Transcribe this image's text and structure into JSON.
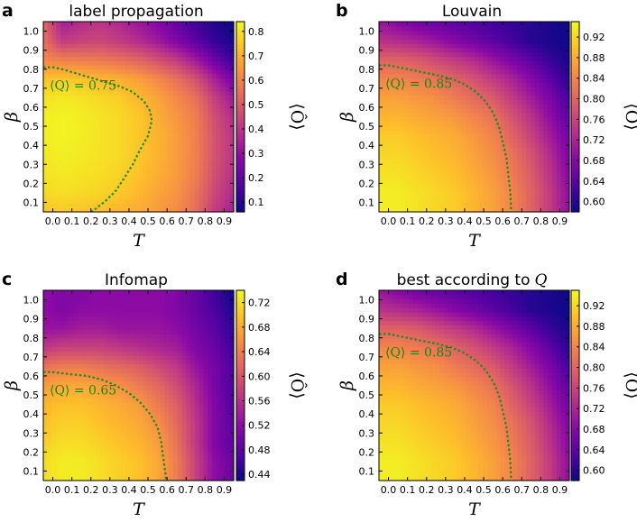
{
  "colors": {
    "contour": "#1e8c1e",
    "contour_text": "#118a11",
    "axis": "#000000"
  },
  "chart_data": [
    {
      "id": "a",
      "type": "heatmap",
      "letter": "a",
      "title": "label propagation",
      "xlabel": "T",
      "ylabel": "β",
      "xlim": [
        -0.05,
        0.95
      ],
      "ylim": [
        0.05,
        1.05
      ],
      "x_ticks": [
        "0.0",
        "0.1",
        "0.2",
        "0.3",
        "0.4",
        "0.5",
        "0.6",
        "0.7",
        "0.8",
        "0.9"
      ],
      "y_ticks": [
        "0.1",
        "0.2",
        "0.3",
        "0.4",
        "0.5",
        "0.6",
        "0.7",
        "0.8",
        "0.9",
        "1.0"
      ],
      "colorbar_label": "⟨Ô⟩",
      "colorbar_ticks": [
        "0.1",
        "0.2",
        "0.3",
        "0.4",
        "0.5",
        "0.6",
        "0.7",
        "0.8"
      ],
      "colorbar_range": [
        0.06,
        0.84
      ],
      "contour_label": "⟨Q⟩ = 0.75",
      "contour_value": 0.75,
      "contour_points": [
        [
          -0.05,
          0.81
        ],
        [
          0.0,
          0.81
        ],
        [
          0.05,
          0.8
        ],
        [
          0.15,
          0.77
        ],
        [
          0.25,
          0.74
        ],
        [
          0.35,
          0.71
        ],
        [
          0.42,
          0.68
        ],
        [
          0.48,
          0.63
        ],
        [
          0.51,
          0.58
        ],
        [
          0.52,
          0.53
        ],
        [
          0.5,
          0.45
        ],
        [
          0.46,
          0.38
        ],
        [
          0.42,
          0.3
        ],
        [
          0.37,
          0.22
        ],
        [
          0.33,
          0.16
        ],
        [
          0.28,
          0.11
        ],
        [
          0.23,
          0.07
        ],
        [
          0.2,
          0.05
        ]
      ],
      "value_grid": {
        "x": [
          -0.05,
          0.05,
          0.15,
          0.25,
          0.35,
          0.45,
          0.55,
          0.65,
          0.75,
          0.85,
          0.95
        ],
        "y": [
          0.05,
          0.15,
          0.25,
          0.35,
          0.45,
          0.55,
          0.65,
          0.75,
          0.85,
          0.95,
          1.05
        ],
        "z": [
          [
            0.74,
            0.75,
            0.74,
            0.73,
            0.71,
            0.69,
            0.66,
            0.62,
            0.55,
            0.42,
            0.34
          ],
          [
            0.78,
            0.79,
            0.78,
            0.77,
            0.75,
            0.72,
            0.68,
            0.64,
            0.57,
            0.45,
            0.37
          ],
          [
            0.8,
            0.81,
            0.8,
            0.79,
            0.77,
            0.74,
            0.7,
            0.66,
            0.59,
            0.47,
            0.39
          ],
          [
            0.81,
            0.82,
            0.81,
            0.8,
            0.78,
            0.75,
            0.71,
            0.66,
            0.6,
            0.48,
            0.4
          ],
          [
            0.82,
            0.83,
            0.82,
            0.8,
            0.78,
            0.75,
            0.71,
            0.66,
            0.6,
            0.48,
            0.4
          ],
          [
            0.82,
            0.83,
            0.82,
            0.8,
            0.78,
            0.75,
            0.7,
            0.65,
            0.59,
            0.47,
            0.38
          ],
          [
            0.8,
            0.81,
            0.8,
            0.78,
            0.76,
            0.72,
            0.68,
            0.62,
            0.56,
            0.43,
            0.33
          ],
          [
            0.74,
            0.75,
            0.74,
            0.72,
            0.7,
            0.67,
            0.62,
            0.56,
            0.48,
            0.35,
            0.24
          ],
          [
            0.62,
            0.6,
            0.59,
            0.58,
            0.56,
            0.53,
            0.48,
            0.42,
            0.33,
            0.22,
            0.13
          ],
          [
            0.56,
            0.42,
            0.44,
            0.45,
            0.42,
            0.38,
            0.33,
            0.26,
            0.19,
            0.12,
            0.08
          ],
          [
            0.54,
            0.34,
            0.38,
            0.4,
            0.37,
            0.32,
            0.27,
            0.2,
            0.14,
            0.09,
            0.06
          ]
        ]
      }
    },
    {
      "id": "b",
      "type": "heatmap",
      "letter": "b",
      "title": "Louvain",
      "xlabel": "T",
      "ylabel": "β",
      "xlim": [
        -0.05,
        0.95
      ],
      "ylim": [
        0.05,
        1.05
      ],
      "x_ticks": [
        "0.0",
        "0.1",
        "0.2",
        "0.3",
        "0.4",
        "0.5",
        "0.6",
        "0.7",
        "0.8",
        "0.9"
      ],
      "y_ticks": [
        "0.1",
        "0.2",
        "0.3",
        "0.4",
        "0.5",
        "0.6",
        "0.7",
        "0.8",
        "0.9",
        "1.0"
      ],
      "colorbar_label": "⟨Ô⟩",
      "colorbar_ticks": [
        "0.60",
        "0.64",
        "0.68",
        "0.72",
        "0.76",
        "0.80",
        "0.84",
        "0.88",
        "0.92"
      ],
      "colorbar_range": [
        0.58,
        0.95
      ],
      "contour_label": "⟨Q⟩ = 0.85",
      "contour_value": 0.85,
      "contour_points": [
        [
          -0.05,
          0.82
        ],
        [
          0.0,
          0.82
        ],
        [
          0.05,
          0.81
        ],
        [
          0.15,
          0.79
        ],
        [
          0.25,
          0.77
        ],
        [
          0.33,
          0.75
        ],
        [
          0.4,
          0.72
        ],
        [
          0.46,
          0.68
        ],
        [
          0.51,
          0.63
        ],
        [
          0.55,
          0.57
        ],
        [
          0.58,
          0.5
        ],
        [
          0.6,
          0.42
        ],
        [
          0.62,
          0.33
        ],
        [
          0.63,
          0.24
        ],
        [
          0.64,
          0.15
        ],
        [
          0.645,
          0.05
        ]
      ],
      "value_grid": {
        "x": [
          -0.05,
          0.05,
          0.15,
          0.25,
          0.35,
          0.45,
          0.55,
          0.65,
          0.75,
          0.85,
          0.95
        ],
        "y": [
          0.05,
          0.15,
          0.25,
          0.35,
          0.45,
          0.55,
          0.65,
          0.75,
          0.85,
          0.95,
          1.05
        ],
        "z": [
          [
            0.94,
            0.94,
            0.93,
            0.92,
            0.91,
            0.89,
            0.87,
            0.84,
            0.8,
            0.75,
            0.69
          ],
          [
            0.94,
            0.94,
            0.93,
            0.92,
            0.91,
            0.89,
            0.87,
            0.84,
            0.8,
            0.75,
            0.69
          ],
          [
            0.93,
            0.93,
            0.92,
            0.91,
            0.9,
            0.88,
            0.86,
            0.83,
            0.79,
            0.74,
            0.68
          ],
          [
            0.92,
            0.92,
            0.91,
            0.9,
            0.89,
            0.87,
            0.85,
            0.82,
            0.78,
            0.73,
            0.67
          ],
          [
            0.91,
            0.91,
            0.9,
            0.89,
            0.88,
            0.86,
            0.84,
            0.8,
            0.76,
            0.71,
            0.66
          ],
          [
            0.89,
            0.89,
            0.88,
            0.87,
            0.86,
            0.84,
            0.82,
            0.78,
            0.74,
            0.69,
            0.64
          ],
          [
            0.87,
            0.87,
            0.86,
            0.85,
            0.83,
            0.81,
            0.79,
            0.75,
            0.71,
            0.67,
            0.62
          ],
          [
            0.84,
            0.84,
            0.83,
            0.82,
            0.8,
            0.78,
            0.75,
            0.72,
            0.68,
            0.64,
            0.6
          ],
          [
            0.8,
            0.8,
            0.79,
            0.77,
            0.75,
            0.73,
            0.7,
            0.67,
            0.64,
            0.61,
            0.59
          ],
          [
            0.74,
            0.73,
            0.72,
            0.7,
            0.68,
            0.66,
            0.64,
            0.62,
            0.6,
            0.59,
            0.58
          ],
          [
            0.7,
            0.68,
            0.66,
            0.65,
            0.64,
            0.63,
            0.62,
            0.61,
            0.6,
            0.59,
            0.58
          ]
        ]
      }
    },
    {
      "id": "c",
      "type": "heatmap",
      "letter": "c",
      "title": "Infomap",
      "xlabel": "T",
      "ylabel": "β",
      "xlim": [
        -0.05,
        0.95
      ],
      "ylim": [
        0.05,
        1.05
      ],
      "x_ticks": [
        "0.0",
        "0.1",
        "0.2",
        "0.3",
        "0.4",
        "0.5",
        "0.6",
        "0.7",
        "0.8",
        "0.9"
      ],
      "y_ticks": [
        "0.1",
        "0.2",
        "0.3",
        "0.4",
        "0.5",
        "0.6",
        "0.7",
        "0.8",
        "0.9",
        "1.0"
      ],
      "colorbar_label": "⟨Ô⟩",
      "colorbar_ticks": [
        "0.44",
        "0.48",
        "0.52",
        "0.56",
        "0.60",
        "0.64",
        "0.68",
        "0.72"
      ],
      "colorbar_range": [
        0.43,
        0.74
      ],
      "contour_label": "⟨Q⟩ = 0.65",
      "contour_value": 0.65,
      "contour_points": [
        [
          -0.05,
          0.62
        ],
        [
          0.0,
          0.62
        ],
        [
          0.08,
          0.61
        ],
        [
          0.18,
          0.6
        ],
        [
          0.26,
          0.58
        ],
        [
          0.33,
          0.55
        ],
        [
          0.4,
          0.51
        ],
        [
          0.46,
          0.46
        ],
        [
          0.51,
          0.4
        ],
        [
          0.55,
          0.33
        ],
        [
          0.57,
          0.25
        ],
        [
          0.58,
          0.17
        ],
        [
          0.59,
          0.1
        ],
        [
          0.595,
          0.05
        ]
      ],
      "value_grid": {
        "x": [
          -0.05,
          0.05,
          0.15,
          0.25,
          0.35,
          0.45,
          0.55,
          0.65,
          0.75,
          0.85,
          0.95
        ],
        "y": [
          0.05,
          0.15,
          0.25,
          0.35,
          0.45,
          0.55,
          0.65,
          0.75,
          0.85,
          0.95,
          1.05
        ],
        "z": [
          [
            0.72,
            0.73,
            0.73,
            0.72,
            0.71,
            0.7,
            0.68,
            0.64,
            0.58,
            0.52,
            0.49
          ],
          [
            0.72,
            0.73,
            0.73,
            0.72,
            0.71,
            0.7,
            0.68,
            0.64,
            0.58,
            0.52,
            0.49
          ],
          [
            0.71,
            0.72,
            0.72,
            0.71,
            0.7,
            0.69,
            0.67,
            0.63,
            0.57,
            0.51,
            0.48
          ],
          [
            0.7,
            0.71,
            0.71,
            0.7,
            0.69,
            0.68,
            0.66,
            0.62,
            0.57,
            0.51,
            0.48
          ],
          [
            0.69,
            0.7,
            0.7,
            0.69,
            0.68,
            0.67,
            0.64,
            0.61,
            0.56,
            0.51,
            0.47
          ],
          [
            0.67,
            0.68,
            0.68,
            0.67,
            0.66,
            0.64,
            0.62,
            0.59,
            0.55,
            0.5,
            0.47
          ],
          [
            0.63,
            0.64,
            0.64,
            0.63,
            0.62,
            0.61,
            0.59,
            0.57,
            0.53,
            0.5,
            0.47
          ],
          [
            0.57,
            0.58,
            0.58,
            0.58,
            0.57,
            0.56,
            0.55,
            0.54,
            0.51,
            0.49,
            0.46
          ],
          [
            0.53,
            0.53,
            0.54,
            0.54,
            0.53,
            0.53,
            0.53,
            0.52,
            0.5,
            0.48,
            0.45
          ],
          [
            0.52,
            0.51,
            0.52,
            0.52,
            0.52,
            0.52,
            0.52,
            0.51,
            0.49,
            0.47,
            0.44
          ],
          [
            0.52,
            0.51,
            0.51,
            0.52,
            0.52,
            0.52,
            0.52,
            0.51,
            0.49,
            0.46,
            0.43
          ]
        ]
      }
    },
    {
      "id": "d",
      "type": "heatmap",
      "letter": "d",
      "title": "best according to",
      "title_symbol": "Q",
      "xlabel": "T",
      "ylabel": "β",
      "xlim": [
        -0.05,
        0.95
      ],
      "ylim": [
        0.05,
        1.05
      ],
      "x_ticks": [
        "0.0",
        "0.1",
        "0.2",
        "0.3",
        "0.4",
        "0.5",
        "0.6",
        "0.7",
        "0.8",
        "0.9"
      ],
      "y_ticks": [
        "0.1",
        "0.2",
        "0.3",
        "0.4",
        "0.5",
        "0.6",
        "0.7",
        "0.8",
        "0.9",
        "1.0"
      ],
      "colorbar_label": "⟨Ô⟩",
      "colorbar_ticks": [
        "0.60",
        "0.64",
        "0.68",
        "0.72",
        "0.76",
        "0.80",
        "0.84",
        "0.88",
        "0.92"
      ],
      "colorbar_range": [
        0.58,
        0.95
      ],
      "contour_label": "⟨Q⟩ = 0.85",
      "contour_value": 0.85,
      "contour_points": [
        [
          -0.05,
          0.82
        ],
        [
          0.0,
          0.82
        ],
        [
          0.05,
          0.81
        ],
        [
          0.15,
          0.79
        ],
        [
          0.25,
          0.77
        ],
        [
          0.33,
          0.75
        ],
        [
          0.4,
          0.72
        ],
        [
          0.46,
          0.68
        ],
        [
          0.51,
          0.63
        ],
        [
          0.55,
          0.57
        ],
        [
          0.58,
          0.5
        ],
        [
          0.6,
          0.42
        ],
        [
          0.62,
          0.33
        ],
        [
          0.63,
          0.24
        ],
        [
          0.64,
          0.15
        ],
        [
          0.645,
          0.05
        ]
      ],
      "value_grid": {
        "x": [
          -0.05,
          0.05,
          0.15,
          0.25,
          0.35,
          0.45,
          0.55,
          0.65,
          0.75,
          0.85,
          0.95
        ],
        "y": [
          0.05,
          0.15,
          0.25,
          0.35,
          0.45,
          0.55,
          0.65,
          0.75,
          0.85,
          0.95,
          1.05
        ],
        "z": [
          [
            0.94,
            0.94,
            0.93,
            0.92,
            0.91,
            0.89,
            0.87,
            0.84,
            0.8,
            0.75,
            0.69
          ],
          [
            0.94,
            0.94,
            0.93,
            0.92,
            0.91,
            0.89,
            0.87,
            0.84,
            0.8,
            0.75,
            0.69
          ],
          [
            0.93,
            0.93,
            0.92,
            0.91,
            0.9,
            0.88,
            0.86,
            0.83,
            0.79,
            0.74,
            0.68
          ],
          [
            0.92,
            0.92,
            0.91,
            0.9,
            0.89,
            0.87,
            0.85,
            0.82,
            0.78,
            0.73,
            0.67
          ],
          [
            0.91,
            0.91,
            0.9,
            0.89,
            0.88,
            0.86,
            0.84,
            0.8,
            0.76,
            0.71,
            0.66
          ],
          [
            0.89,
            0.89,
            0.88,
            0.87,
            0.86,
            0.84,
            0.82,
            0.78,
            0.74,
            0.69,
            0.64
          ],
          [
            0.87,
            0.87,
            0.86,
            0.85,
            0.83,
            0.81,
            0.79,
            0.75,
            0.71,
            0.67,
            0.62
          ],
          [
            0.84,
            0.84,
            0.83,
            0.82,
            0.8,
            0.78,
            0.75,
            0.72,
            0.68,
            0.64,
            0.6
          ],
          [
            0.8,
            0.8,
            0.79,
            0.77,
            0.75,
            0.73,
            0.7,
            0.67,
            0.64,
            0.61,
            0.59
          ],
          [
            0.74,
            0.73,
            0.72,
            0.7,
            0.68,
            0.66,
            0.64,
            0.62,
            0.6,
            0.59,
            0.58
          ],
          [
            0.7,
            0.68,
            0.66,
            0.65,
            0.64,
            0.63,
            0.62,
            0.61,
            0.6,
            0.59,
            0.58
          ]
        ]
      }
    }
  ]
}
